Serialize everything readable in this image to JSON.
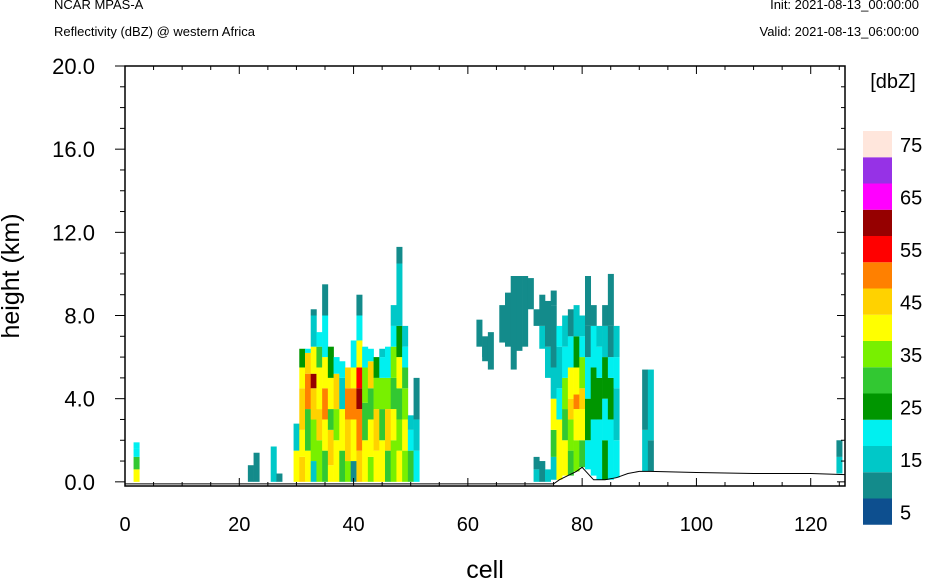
{
  "header": {
    "model": "NCAR MPAS-A",
    "field": "Reflectivity (dBZ) @ western Africa",
    "init": "Init: 2021-08-13_00:00:00",
    "valid": "Valid: 2021-08-13_06:00:00"
  },
  "colors": {
    "palette": [
      "#0d4f8f",
      "#138b8b",
      "#00c8c8",
      "#00f0f0",
      "#009600",
      "#32c832",
      "#78f000",
      "#ffff00",
      "#ffd200",
      "#ff8000",
      "#ff0000",
      "#960000",
      "#ff00ff",
      "#9632e6",
      "#ffe6dc"
    ]
  },
  "chart_data": {
    "type": "heatmap",
    "xlabel": "cell",
    "ylabel": "height (km)",
    "xlim": [
      0,
      126
    ],
    "ylim": [
      -0.2,
      20
    ],
    "xticks": [
      "0",
      "20",
      "40",
      "60",
      "80",
      "100",
      "120"
    ],
    "yticks": [
      "0.0",
      "4.0",
      "8.0",
      "12.0",
      "16.0",
      "20.0"
    ],
    "colorbar": {
      "title": "[dbZ]",
      "levels": [
        5,
        10,
        15,
        20,
        25,
        30,
        35,
        40,
        45,
        50,
        55,
        60,
        65,
        70,
        75
      ],
      "labels": [
        "5",
        "15",
        "25",
        "35",
        "45",
        "55",
        "65",
        "75"
      ]
    },
    "terrain": [
      [
        0,
        -0.1
      ],
      [
        75,
        -0.1
      ],
      [
        76,
        0.1
      ],
      [
        79,
        0.5
      ],
      [
        80,
        0.7
      ],
      [
        82,
        0.1
      ],
      [
        84,
        0.1
      ],
      [
        86,
        0.2
      ],
      [
        88,
        0.4
      ],
      [
        90,
        0.5
      ],
      [
        92,
        0.5
      ],
      [
        100,
        0.45
      ],
      [
        110,
        0.4
      ],
      [
        120,
        0.4
      ],
      [
        126,
        0.35
      ]
    ],
    "columns": [
      {
        "cell": 2,
        "bins": [
          [
            0,
            0.6,
            7
          ],
          [
            0.6,
            1.2,
            5
          ],
          [
            1.2,
            1.6,
            3
          ],
          [
            1.6,
            1.9,
            3
          ]
        ]
      },
      {
        "cell": 22,
        "bins": [
          [
            0,
            0.8,
            1
          ]
        ]
      },
      {
        "cell": 23,
        "bins": [
          [
            0,
            1.4,
            1
          ]
        ]
      },
      {
        "cell": 26,
        "bins": [
          [
            0,
            1.7,
            2
          ]
        ]
      },
      {
        "cell": 27,
        "bins": [
          [
            0,
            0.4,
            1
          ]
        ]
      },
      {
        "cell": 30,
        "bins": [
          [
            0,
            1.5,
            7
          ],
          [
            1.5,
            2.8,
            2
          ]
        ]
      },
      {
        "cell": 31,
        "bins": [
          [
            0,
            1.2,
            8
          ],
          [
            1.2,
            2.5,
            7
          ],
          [
            2.5,
            4.5,
            8
          ],
          [
            4.5,
            5.5,
            7
          ],
          [
            5.5,
            6.4,
            4
          ]
        ]
      },
      {
        "cell": 32,
        "bins": [
          [
            0,
            1.5,
            7
          ],
          [
            1.5,
            3.5,
            5
          ],
          [
            3.5,
            5.2,
            9
          ],
          [
            5.2,
            6.2,
            8
          ],
          [
            6.2,
            6.4,
            3
          ]
        ]
      },
      {
        "cell": 33,
        "bins": [
          [
            0,
            1,
            2
          ],
          [
            1,
            3,
            6
          ],
          [
            3,
            4.5,
            8
          ],
          [
            4.5,
            5.2,
            11
          ],
          [
            5.2,
            6.5,
            7
          ],
          [
            6.5,
            8,
            2
          ],
          [
            8,
            8.3,
            1
          ]
        ]
      },
      {
        "cell": 34,
        "bins": [
          [
            0,
            2,
            6
          ],
          [
            2,
            3.5,
            8
          ],
          [
            3.5,
            5.5,
            7
          ],
          [
            5.5,
            6.5,
            5
          ],
          [
            6.5,
            7.2,
            3
          ]
        ]
      },
      {
        "cell": 35,
        "bins": [
          [
            0,
            1.5,
            5
          ],
          [
            1.5,
            3,
            7
          ],
          [
            3,
            4.5,
            9
          ],
          [
            4.5,
            6,
            7
          ],
          [
            6,
            8,
            3
          ],
          [
            8,
            9.5,
            1
          ]
        ]
      },
      {
        "cell": 36,
        "bins": [
          [
            0,
            0.8,
            7
          ],
          [
            0.8,
            2.5,
            8
          ],
          [
            2.5,
            3.5,
            5
          ],
          [
            3.5,
            5,
            7
          ],
          [
            5,
            6.5,
            4
          ]
        ]
      },
      {
        "cell": 37,
        "bins": [
          [
            0,
            2,
            7
          ],
          [
            2,
            3.5,
            6
          ],
          [
            3.5,
            5.2,
            8
          ],
          [
            5.2,
            6,
            3
          ]
        ]
      },
      {
        "cell": 38,
        "bins": [
          [
            0,
            1.5,
            5
          ],
          [
            1.5,
            3.5,
            7
          ],
          [
            3.5,
            5,
            2
          ],
          [
            5,
            5.8,
            3
          ]
        ]
      },
      {
        "cell": 39,
        "bins": [
          [
            0,
            1,
            6
          ],
          [
            1,
            3,
            8
          ],
          [
            3,
            4.5,
            9
          ],
          [
            4.5,
            5.5,
            8
          ]
        ]
      },
      {
        "cell": 40,
        "bins": [
          [
            0,
            1,
            1
          ],
          [
            1,
            3,
            7
          ],
          [
            3,
            4.5,
            9
          ],
          [
            4.5,
            5.5,
            7
          ],
          [
            5.5,
            6.8,
            3
          ]
        ]
      },
      {
        "cell": 41,
        "bins": [
          [
            0,
            1.5,
            8
          ],
          [
            1.5,
            3.5,
            9
          ],
          [
            3.5,
            4.5,
            11
          ],
          [
            4.5,
            5.5,
            10
          ],
          [
            5.5,
            6.8,
            7
          ],
          [
            6.8,
            8,
            3
          ],
          [
            8,
            9,
            1
          ]
        ]
      },
      {
        "cell": 42,
        "bins": [
          [
            0,
            2,
            7
          ],
          [
            2,
            3.8,
            5
          ],
          [
            3.8,
            5.5,
            6
          ],
          [
            5.5,
            6.5,
            3
          ]
        ]
      },
      {
        "cell": 43,
        "bins": [
          [
            0,
            1.2,
            6
          ],
          [
            1.2,
            3,
            7
          ],
          [
            3,
            4.5,
            5
          ],
          [
            4.5,
            5.8,
            8
          ],
          [
            5.8,
            6.4,
            3
          ]
        ]
      },
      {
        "cell": 44,
        "bins": [
          [
            0,
            1.5,
            7
          ],
          [
            1.5,
            3.5,
            8
          ],
          [
            3.5,
            5,
            6
          ],
          [
            5,
            6,
            4
          ]
        ]
      },
      {
        "cell": 45,
        "bins": [
          [
            0,
            2,
            7
          ],
          [
            2,
            3.5,
            5
          ],
          [
            3.5,
            5,
            6
          ],
          [
            5,
            6,
            3
          ],
          [
            6,
            6.4,
            2
          ]
        ]
      },
      {
        "cell": 46,
        "bins": [
          [
            0,
            1.5,
            5
          ],
          [
            1.5,
            3.5,
            8
          ],
          [
            3.5,
            5,
            6
          ],
          [
            5,
            6.5,
            3
          ]
        ]
      },
      {
        "cell": 47,
        "bins": [
          [
            0,
            2,
            6
          ],
          [
            2,
            3.5,
            7
          ],
          [
            3.5,
            5,
            5
          ],
          [
            5,
            6.5,
            6
          ],
          [
            6.5,
            7.5,
            3
          ],
          [
            7.5,
            8.5,
            2
          ]
        ]
      },
      {
        "cell": 48,
        "bins": [
          [
            0,
            1.5,
            7
          ],
          [
            1.5,
            3,
            6
          ],
          [
            3,
            4.5,
            5
          ],
          [
            4.5,
            6,
            7
          ],
          [
            6,
            7.5,
            4
          ],
          [
            7.5,
            10.5,
            2
          ],
          [
            10.5,
            11.3,
            1
          ]
        ]
      },
      {
        "cell": 49,
        "bins": [
          [
            0,
            1.5,
            6
          ],
          [
            1.5,
            3,
            7
          ],
          [
            3,
            4.5,
            6
          ],
          [
            4.5,
            5.5,
            5
          ],
          [
            5.5,
            6.5,
            3
          ],
          [
            6.5,
            7.5,
            2
          ]
        ]
      },
      {
        "cell": 50,
        "bins": [
          [
            0,
            1.5,
            5
          ],
          [
            1.5,
            2.5,
            3
          ],
          [
            2.5,
            3.2,
            2
          ]
        ]
      },
      {
        "cell": 51,
        "bins": [
          [
            0,
            1.5,
            3
          ],
          [
            1.5,
            3,
            2
          ],
          [
            3,
            5,
            1
          ]
        ]
      },
      {
        "cell": 62,
        "bins": [
          [
            6.5,
            7.8,
            1
          ]
        ]
      },
      {
        "cell": 63,
        "bins": [
          [
            6,
            7,
            1
          ],
          [
            5.8,
            6.5,
            1
          ]
        ]
      },
      {
        "cell": 64,
        "bins": [
          [
            5.4,
            7.2,
            1
          ]
        ]
      },
      {
        "cell": 66,
        "bins": [
          [
            6.7,
            8.5,
            1
          ]
        ]
      },
      {
        "cell": 67,
        "bins": [
          [
            6.5,
            9.1,
            1
          ]
        ]
      },
      {
        "cell": 68,
        "bins": [
          [
            5.4,
            9.9,
            1
          ]
        ]
      },
      {
        "cell": 69,
        "bins": [
          [
            6.3,
            9.9,
            1
          ]
        ]
      },
      {
        "cell": 70,
        "bins": [
          [
            6.5,
            9.9,
            1
          ]
        ]
      },
      {
        "cell": 71,
        "bins": [
          [
            8.3,
            9.8,
            1
          ]
        ]
      },
      {
        "cell": 72,
        "bins": [
          [
            0,
            0.6,
            2
          ],
          [
            0.6,
            1.2,
            1
          ],
          [
            7.5,
            8.3,
            1
          ]
        ]
      },
      {
        "cell": 73,
        "bins": [
          [
            0,
            1,
            1
          ],
          [
            6.4,
            7.5,
            2
          ],
          [
            7.5,
            9,
            1
          ]
        ]
      },
      {
        "cell": 74,
        "bins": [
          [
            0,
            0.6,
            2
          ],
          [
            5,
            6.5,
            2
          ],
          [
            6.5,
            8.7,
            1
          ]
        ]
      },
      {
        "cell": 75,
        "bins": [
          [
            0.1,
            1.2,
            2
          ],
          [
            1.2,
            2.5,
            5
          ],
          [
            2.5,
            4,
            7
          ],
          [
            4,
            5.5,
            2
          ],
          [
            5.5,
            8.5,
            1
          ],
          [
            8.5,
            9.2,
            1
          ]
        ]
      },
      {
        "cell": 76,
        "bins": [
          [
            0.1,
            3,
            7
          ],
          [
            3,
            4.5,
            3
          ],
          [
            4.5,
            6.5,
            2
          ],
          [
            6.5,
            7.5,
            3
          ]
        ]
      },
      {
        "cell": 77,
        "bins": [
          [
            0.3,
            2,
            7
          ],
          [
            2,
            3.5,
            5
          ],
          [
            3.5,
            5,
            6
          ],
          [
            5,
            6.5,
            3
          ],
          [
            6.5,
            8,
            2
          ]
        ]
      },
      {
        "cell": 78,
        "bins": [
          [
            0.3,
            1.5,
            5
          ],
          [
            1.5,
            3,
            6
          ],
          [
            3,
            4,
            8
          ],
          [
            4,
            5.5,
            7
          ],
          [
            5.5,
            7,
            3
          ],
          [
            7,
            8.3,
            1
          ]
        ]
      },
      {
        "cell": 79,
        "bins": [
          [
            0.5,
            2,
            6
          ],
          [
            2,
            3.5,
            7
          ],
          [
            3.5,
            4.2,
            9
          ],
          [
            4.2,
            5.5,
            7
          ],
          [
            5.5,
            7,
            4
          ],
          [
            7,
            8.5,
            2
          ]
        ]
      },
      {
        "cell": 80,
        "bins": [
          [
            0.7,
            2,
            5
          ],
          [
            2,
            3.5,
            7
          ],
          [
            3.5,
            4.5,
            8
          ],
          [
            4.5,
            6,
            6
          ],
          [
            6,
            7,
            3
          ],
          [
            7,
            8,
            2
          ]
        ]
      },
      {
        "cell": 81,
        "bins": [
          [
            0.6,
            2,
            3
          ],
          [
            2,
            4,
            4
          ],
          [
            4,
            6,
            3
          ],
          [
            6,
            7.5,
            1
          ],
          [
            7.5,
            9.9,
            1
          ]
        ]
      },
      {
        "cell": 82,
        "bins": [
          [
            0.3,
            3,
            3
          ],
          [
            3,
            5.5,
            4
          ],
          [
            5.5,
            7.5,
            3
          ],
          [
            7.5,
            8.5,
            1
          ]
        ]
      },
      {
        "cell": 83,
        "bins": [
          [
            0.1,
            3,
            3
          ],
          [
            3,
            5,
            4
          ],
          [
            5,
            6.5,
            3
          ],
          [
            6.5,
            7.5,
            2
          ]
        ]
      },
      {
        "cell": 84,
        "bins": [
          [
            0.1,
            2,
            4
          ],
          [
            2,
            4,
            3
          ],
          [
            4,
            6,
            4
          ],
          [
            6,
            7.5,
            2
          ],
          [
            7.5,
            8.5,
            1
          ]
        ]
      },
      {
        "cell": 85,
        "bins": [
          [
            0.1,
            3,
            3
          ],
          [
            3,
            5,
            4
          ],
          [
            5,
            6,
            3
          ],
          [
            6,
            7.5,
            1
          ],
          [
            7.5,
            10,
            1
          ]
        ]
      },
      {
        "cell": 86,
        "bins": [
          [
            0.2,
            2,
            3
          ],
          [
            2,
            4.5,
            2
          ],
          [
            4.5,
            6,
            3
          ],
          [
            6,
            7.5,
            2
          ]
        ]
      },
      {
        "cell": 91,
        "bins": [
          [
            0.5,
            2.5,
            2
          ],
          [
            2.5,
            5.4,
            1
          ]
        ]
      },
      {
        "cell": 92,
        "bins": [
          [
            0.5,
            2,
            1
          ],
          [
            2,
            5.4,
            2
          ]
        ]
      },
      {
        "cell": 125,
        "bins": [
          [
            0.4,
            1.2,
            2
          ],
          [
            1.2,
            2,
            1
          ]
        ]
      }
    ]
  }
}
